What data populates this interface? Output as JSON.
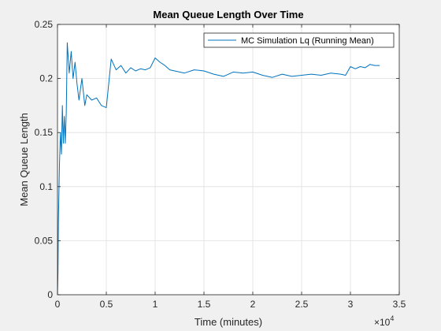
{
  "chart_data": {
    "type": "line",
    "title": "Mean Queue Length Over Time",
    "xlabel": "Time (minutes)",
    "ylabel": "Mean Queue Length",
    "x_exponent_base": "×10",
    "x_exponent_power": "4",
    "xlim": [
      0,
      3.5
    ],
    "ylim": [
      0,
      0.25
    ],
    "x_ticks": [
      0,
      0.5,
      1,
      1.5,
      2,
      2.5,
      3,
      3.5
    ],
    "x_tick_labels": [
      "0",
      "0.5",
      "1",
      "1.5",
      "2",
      "2.5",
      "3",
      "3.5"
    ],
    "y_ticks": [
      0,
      0.05,
      0.1,
      0.15,
      0.2,
      0.25
    ],
    "y_tick_labels": [
      "0",
      "0.05",
      "0.1",
      "0.15",
      "0.2",
      "0.25"
    ],
    "grid": true,
    "legend_position": "top-right",
    "series": [
      {
        "name": "MC Simulation Lq (Running Mean)",
        "color": "#0072BD",
        "x": [
          0,
          0.005,
          0.01,
          0.02,
          0.03,
          0.04,
          0.05,
          0.06,
          0.07,
          0.08,
          0.09,
          0.1,
          0.12,
          0.14,
          0.16,
          0.18,
          0.2,
          0.22,
          0.25,
          0.28,
          0.3,
          0.35,
          0.4,
          0.45,
          0.5,
          0.55,
          0.6,
          0.65,
          0.7,
          0.75,
          0.8,
          0.85,
          0.9,
          0.95,
          1.0,
          1.05,
          1.1,
          1.15,
          1.2,
          1.3,
          1.4,
          1.5,
          1.6,
          1.7,
          1.8,
          1.9,
          2.0,
          2.1,
          2.2,
          2.3,
          2.4,
          2.5,
          2.6,
          2.7,
          2.8,
          2.9,
          2.95,
          3.0,
          3.05,
          3.1,
          3.15,
          3.2,
          3.25,
          3.3
        ],
        "y": [
          0,
          0.02,
          0.07,
          0.12,
          0.15,
          0.13,
          0.175,
          0.14,
          0.165,
          0.14,
          0.17,
          0.233,
          0.205,
          0.225,
          0.2,
          0.215,
          0.195,
          0.18,
          0.2,
          0.175,
          0.185,
          0.18,
          0.182,
          0.175,
          0.173,
          0.218,
          0.208,
          0.212,
          0.205,
          0.21,
          0.207,
          0.209,
          0.208,
          0.21,
          0.219,
          0.215,
          0.212,
          0.208,
          0.207,
          0.205,
          0.208,
          0.207,
          0.204,
          0.202,
          0.206,
          0.205,
          0.206,
          0.203,
          0.201,
          0.204,
          0.202,
          0.203,
          0.204,
          0.203,
          0.205,
          0.204,
          0.203,
          0.211,
          0.209,
          0.211,
          0.21,
          0.213,
          0.212,
          0.212
        ]
      }
    ]
  }
}
